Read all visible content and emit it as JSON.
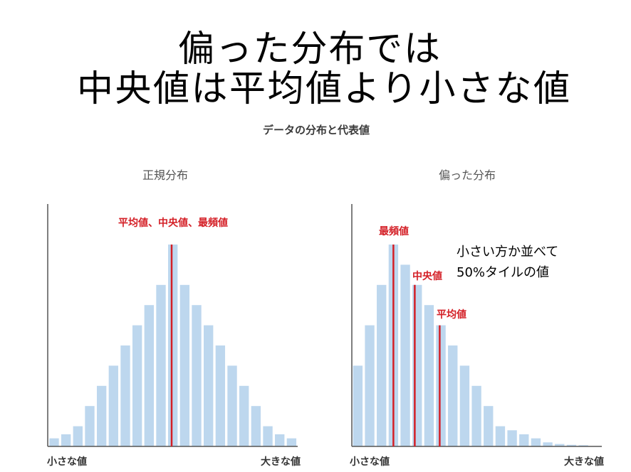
{
  "slide": {
    "title_line1": "偏った分布では",
    "title_line2": "中央値は平均値より小さな値",
    "subtitle": "データの分布と代表値",
    "note_line1": "小さい方か並べて",
    "note_line2": "50%タイルの値"
  },
  "colors": {
    "bar": "#bdd7ee",
    "marker": "#d41f26",
    "axis": "#555555"
  },
  "chart_data": [
    {
      "type": "bar",
      "title": "正規分布",
      "xlabel_left": "小さな値",
      "xlabel_right": "大きな値",
      "values": [
        4,
        6,
        10,
        20,
        30,
        40,
        50,
        60,
        70,
        80,
        100,
        80,
        70,
        60,
        50,
        40,
        30,
        20,
        10,
        6,
        4
      ],
      "ylim": [
        0,
        120
      ],
      "markers": [
        {
          "label": "平均値、中央値、最頻値",
          "bin": 10.3,
          "height": 100
        }
      ]
    },
    {
      "type": "bar",
      "title": "偏った分布",
      "xlabel_left": "小さな値",
      "xlabel_right": "大きな値",
      "values": [
        40,
        60,
        80,
        100,
        90,
        80,
        70,
        60,
        50,
        40,
        30,
        20,
        10,
        8,
        6,
        4,
        2,
        1.2,
        0.8,
        0.6
      ],
      "ylim": [
        0,
        120
      ],
      "markers": [
        {
          "label": "最頻値",
          "bin": 3.4,
          "height": 100
        },
        {
          "label": "中央値",
          "bin": 5.2,
          "height": 80
        },
        {
          "label": "平均値",
          "bin": 7.3,
          "height": 60
        }
      ]
    }
  ]
}
